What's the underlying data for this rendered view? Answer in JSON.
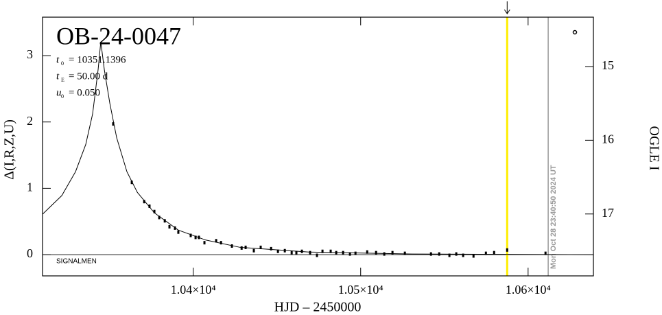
{
  "chart_data": {
    "type": "scatter",
    "title": "OB-24-0047",
    "params": [
      {
        "symbol": "t",
        "subscript": "0",
        "text": "= 10351.1396"
      },
      {
        "symbol": "t",
        "subscript": "E",
        "text": "= 50.00 d"
      },
      {
        "symbol": "u",
        "subscript": "0",
        "text": "= 0.050"
      }
    ],
    "annotation": "SIGNALMEN",
    "timestamp": "Mon Oct 28 23:40:50 2024 UT",
    "x_label": "HJD – 2450000",
    "y_label": "Δ(I,R,Z,U)",
    "y2_label": "OGLE I",
    "xlim": [
      10310,
      10639
    ],
    "xticks": [
      {
        "value": 10400,
        "label": "1.04×10⁴"
      },
      {
        "value": 10500,
        "label": "1.05×10⁴"
      },
      {
        "value": 10600,
        "label": "1.06×10⁴"
      }
    ],
    "ylim": [
      -0.32,
      3.58
    ],
    "yticks": [
      0,
      1,
      2,
      3
    ],
    "y2lim": [
      17.84,
      14.33
    ],
    "y2ticks": [
      15,
      16,
      17
    ],
    "current_time_x": 10587.5,
    "current_time_color": "#ffee00",
    "timestamp_x": 10612,
    "timestamp_color": "#999999",
    "data": {
      "color": "#000000",
      "x": [
        10352.2,
        10363.3,
        10370.7,
        10373.9,
        10376.8,
        10379.7,
        10383.0,
        10385.8,
        10389.1,
        10391.1,
        10398.5,
        10401.4,
        10403.4,
        10406.7,
        10413.7,
        10416.6,
        10423.1,
        10428.9,
        10431.3,
        10436.2,
        10440.3,
        10446.5,
        10450.6,
        10454.7,
        10458.8,
        10461.6,
        10464.9,
        10469.8,
        10473.9,
        10477.2,
        10482.1,
        10485.4,
        10489.5,
        10493.6,
        10496.9,
        10503.9,
        10509.2,
        10514.1,
        10519.0,
        10526.4,
        10542.0,
        10546.9,
        10553.0,
        10557.1,
        10561.2,
        10567.4,
        10574.8,
        10579.7,
        10587.5,
        10610.4
      ],
      "values": [
        1.97,
        1.09,
        0.8,
        0.73,
        0.65,
        0.56,
        0.51,
        0.42,
        0.4,
        0.34,
        0.29,
        0.26,
        0.26,
        0.18,
        0.21,
        0.18,
        0.13,
        0.1,
        0.11,
        0.06,
        0.11,
        0.09,
        0.05,
        0.06,
        0.03,
        0.03,
        0.05,
        0.03,
        -0.01,
        0.05,
        0.05,
        0.03,
        0.03,
        0.01,
        0.02,
        0.04,
        0.03,
        0.01,
        0.03,
        0.02,
        0.01,
        0.01,
        -0.01,
        0.01,
        -0.01,
        -0.02,
        0.02,
        0.03,
        0.07,
        0.02
      ]
    },
    "model": {
      "color": "#000000",
      "x": [
        10310,
        10321.5,
        10329.7,
        10335.8,
        10339.9,
        10343.2,
        10344.8,
        10346.9,
        10350.2,
        10354.3,
        10360.4,
        10366.6,
        10376.8,
        10391.1,
        10407.5,
        10428,
        10469,
        10530.5,
        10639
      ],
      "values": [
        0.61,
        0.89,
        1.25,
        1.66,
        2.12,
        2.79,
        3.21,
        2.79,
        2.28,
        1.76,
        1.25,
        0.94,
        0.63,
        0.37,
        0.22,
        0.11,
        0.04,
        0.01,
        0
      ]
    }
  }
}
